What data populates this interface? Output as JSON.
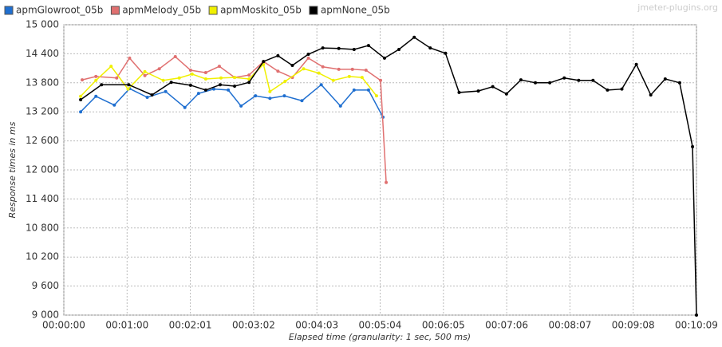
{
  "chart_data": {
    "type": "line",
    "watermark": "jmeter-plugins.org",
    "x_label": "Elapsed time (granularity: 1 sec, 500 ms)",
    "y_label": "Response times in ms",
    "xlim": [
      0,
      609
    ],
    "xticks": [
      {
        "value": 0,
        "label": "00:00:00"
      },
      {
        "value": 60.9,
        "label": "00:01:00"
      },
      {
        "value": 121.8,
        "label": "00:02:01"
      },
      {
        "value": 182.7,
        "label": "00:03:02"
      },
      {
        "value": 243.6,
        "label": "00:04:03"
      },
      {
        "value": 304.5,
        "label": "00:05:04"
      },
      {
        "value": 365.4,
        "label": "00:06:05"
      },
      {
        "value": 426.3,
        "label": "00:07:06"
      },
      {
        "value": 487.2,
        "label": "00:08:07"
      },
      {
        "value": 548.1,
        "label": "00:09:08"
      },
      {
        "value": 609,
        "label": "00:10:09"
      }
    ],
    "ylim": [
      9000,
      15000
    ],
    "yticks": [
      {
        "value": 9000,
        "label": "9 000"
      },
      {
        "value": 9600,
        "label": "9 600"
      },
      {
        "value": 10200,
        "label": "10 200"
      },
      {
        "value": 10800,
        "label": "10 800"
      },
      {
        "value": 11400,
        "label": "11 400"
      },
      {
        "value": 12000,
        "label": "12 000"
      },
      {
        "value": 12600,
        "label": "12 600"
      },
      {
        "value": 13200,
        "label": "13 200"
      },
      {
        "value": 13800,
        "label": "13 800"
      },
      {
        "value": 14400,
        "label": "14 400"
      },
      {
        "value": 15000,
        "label": "15 000"
      }
    ],
    "grid": true,
    "series": [
      {
        "name": "apmGlowroot_05b",
        "color": "#1f6fd0",
        "x": [
          16.2,
          30.9,
          48.6,
          63.3,
          80.3,
          98.0,
          116.5,
          129.7,
          144.4,
          158.3,
          170.6,
          184.5,
          198.4,
          212.3,
          229.2,
          247.8,
          266.3,
          279.4,
          293.3,
          307.2
        ],
        "values": [
          13200,
          13520,
          13340,
          13680,
          13500,
          13620,
          13290,
          13580,
          13670,
          13650,
          13320,
          13530,
          13480,
          13530,
          13430,
          13760,
          13320,
          13650,
          13650,
          13090
        ]
      },
      {
        "name": "apmMelody_05b",
        "color": "#e07070",
        "x": [
          17.7,
          30.9,
          50.9,
          63.3,
          78.0,
          91.9,
          107.3,
          122.0,
          136.6,
          149.7,
          164.4,
          178.3,
          192.2,
          206.1,
          220.0,
          235.4,
          249.3,
          264.7,
          277.8,
          290.9,
          304.9,
          310.3
        ],
        "values": [
          13860,
          13930,
          13900,
          14310,
          13950,
          14090,
          14340,
          14060,
          14010,
          14140,
          13910,
          13960,
          14240,
          14040,
          13910,
          14310,
          14130,
          14080,
          14080,
          14060,
          13850,
          11740
        ]
      },
      {
        "name": "apmMoskito_05b",
        "color": "#f0f000",
        "x": [
          16.2,
          30.9,
          45.5,
          61.8,
          78.0,
          95.7,
          111.1,
          123.5,
          136.6,
          151.3,
          164.4,
          178.3,
          192.2,
          198.4,
          213.0,
          230.8,
          245.5,
          259.4,
          274.8,
          287.1,
          301.0
        ],
        "values": [
          13520,
          13850,
          14140,
          13670,
          14030,
          13850,
          13900,
          13980,
          13880,
          13900,
          13910,
          13880,
          14180,
          13620,
          13830,
          14090,
          14000,
          13850,
          13930,
          13910,
          13530
        ]
      },
      {
        "name": "apmNone_05b",
        "color": "#000000",
        "x": [
          16.2,
          36.3,
          62.5,
          84.9,
          103.4,
          122.0,
          136.6,
          150.5,
          164.4,
          178.3,
          192.2,
          206.1,
          220.0,
          235.4,
          249.3,
          264.7,
          279.4,
          293.3,
          308.7,
          322.6,
          337.3,
          352.7,
          367.4,
          380.5,
          399.0,
          412.9,
          426.1,
          440.0,
          453.9,
          467.8,
          481.7,
          495.6,
          509.4,
          523.3,
          537.2,
          551.1,
          565.0,
          578.9,
          592.8,
          605.2,
          609
        ],
        "values": [
          13450,
          13760,
          13760,
          13550,
          13810,
          13750,
          13650,
          13760,
          13730,
          13810,
          14240,
          14360,
          14160,
          14390,
          14520,
          14510,
          14490,
          14570,
          14310,
          14490,
          14740,
          14520,
          14410,
          13600,
          13630,
          13720,
          13570,
          13860,
          13800,
          13800,
          13900,
          13850,
          13850,
          13650,
          13670,
          14180,
          13550,
          13880,
          13800,
          12480,
          9000
        ]
      }
    ]
  }
}
